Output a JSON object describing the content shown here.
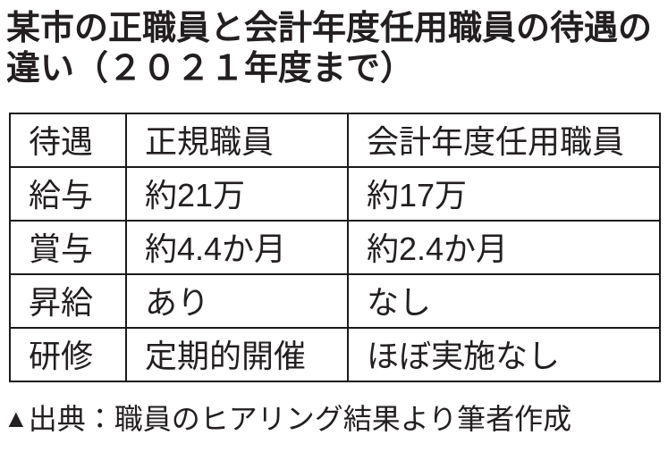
{
  "title": {
    "line1": "某市の正職員と会計年度任用職員の待遇の",
    "line2": "違い（２０２１年度まで）"
  },
  "table": {
    "headers": [
      "待遇",
      "正規職員",
      "会計年度任用職員"
    ],
    "rows": [
      [
        "給与",
        "約21万",
        "約17万"
      ],
      [
        "賞与",
        "約4.4か月",
        "約2.4か月"
      ],
      [
        "昇給",
        "あり",
        "なし"
      ],
      [
        "研修",
        "定期的開催",
        "ほぼ実施なし"
      ]
    ]
  },
  "source": {
    "marker": "▲",
    "text": "出典：職員のヒアリング結果より筆者作成"
  },
  "colors": {
    "text": "#231f20",
    "border": "#1a1a1a",
    "background": "#ffffff"
  }
}
